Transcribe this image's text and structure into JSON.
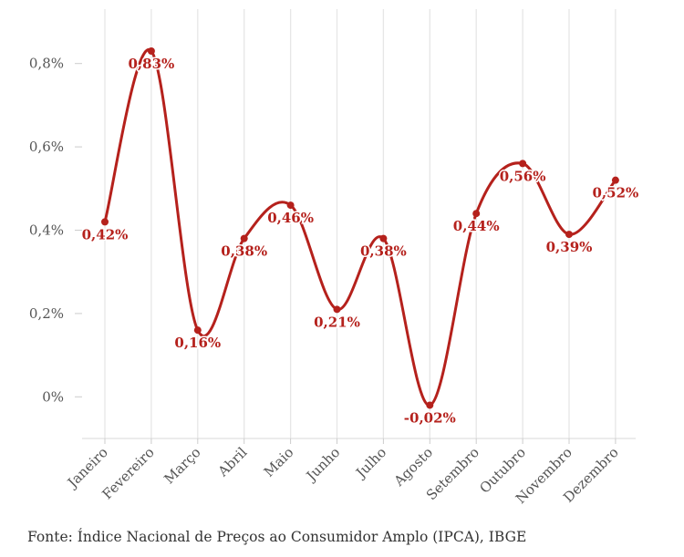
{
  "chart_data": {
    "type": "line",
    "categories": [
      "Janeiro",
      "Fevereiro",
      "Março",
      "Abril",
      "Maio",
      "Junho",
      "Julho",
      "Agosto",
      "Setembro",
      "Outubro",
      "Novembro",
      "Dezembro"
    ],
    "values": [
      0.42,
      0.83,
      0.16,
      0.38,
      0.46,
      0.21,
      0.38,
      -0.02,
      0.44,
      0.56,
      0.39,
      0.52
    ],
    "data_labels": [
      "0,42%",
      "0,83%",
      "0,16%",
      "0,38%",
      "0,46%",
      "0,21%",
      "0,38%",
      "-0,02%",
      "0,44%",
      "0,56%",
      "0,39%",
      "0,52%"
    ],
    "yticks": [
      0,
      0.2,
      0.4,
      0.6,
      0.8
    ],
    "ytick_labels": [
      "0%",
      "0,2%",
      "0,4%",
      "0,6%",
      "0,8%"
    ],
    "ylim": [
      -0.1,
      0.9
    ],
    "grid": "vertical",
    "line_color": "#b5211c",
    "smooth": true
  },
  "source": "Fonte: Índice Nacional de Preços ao Consumidor Amplo (IPCA), IBGE"
}
